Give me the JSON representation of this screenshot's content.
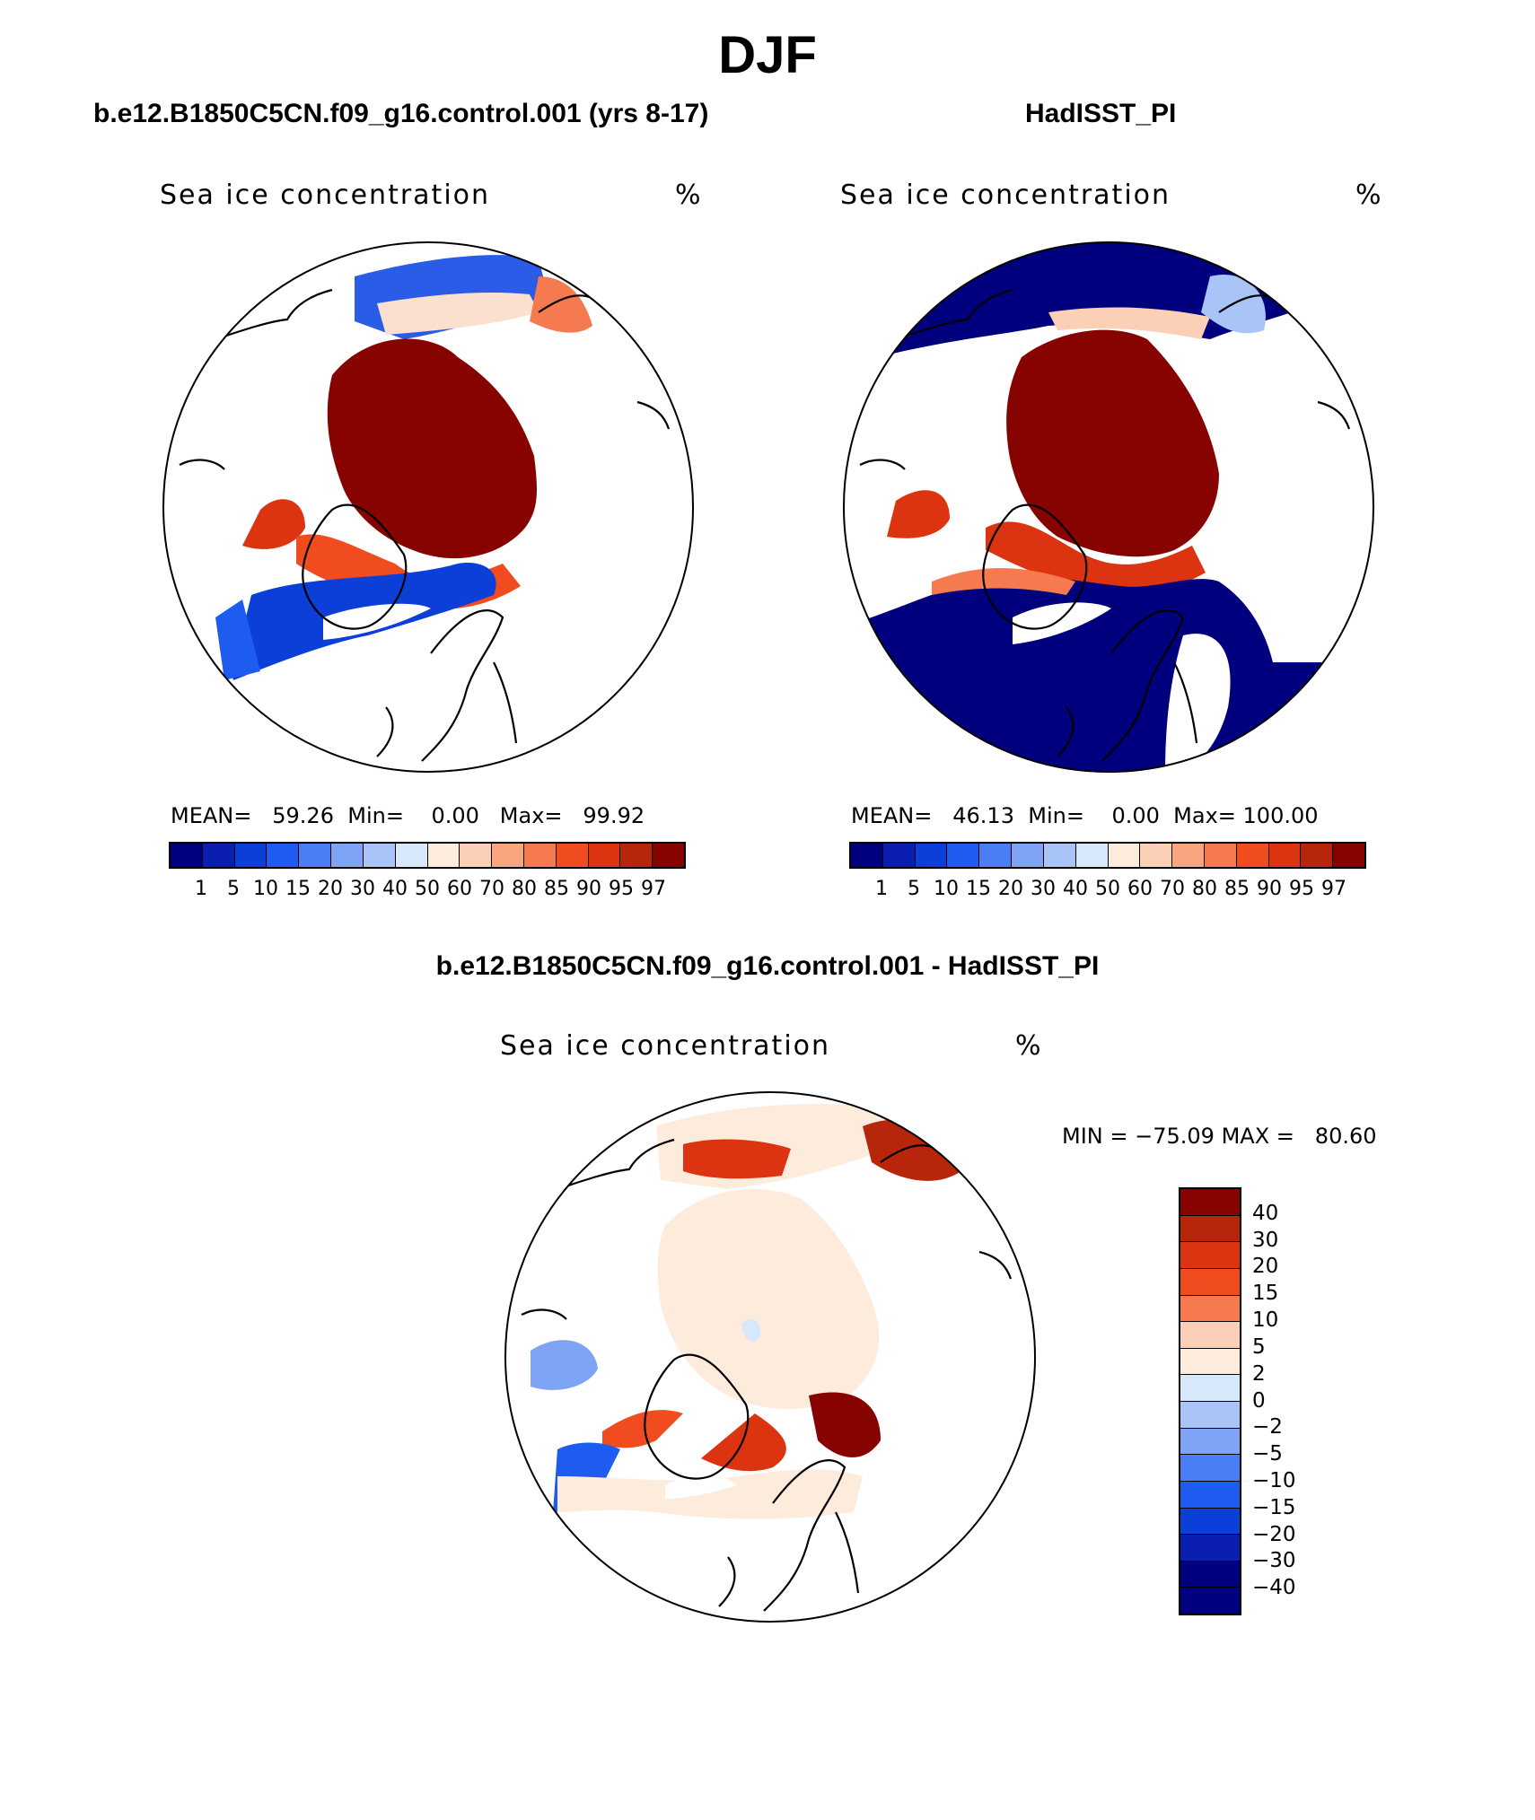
{
  "title": "DJF",
  "panels": {
    "model": {
      "title": "b.e12.B1850C5CN.f09_g16.control.001 (yrs 8-17)",
      "plot_label": "Sea ice concentration",
      "units": "%",
      "stats": {
        "mean_label": "MEAN=",
        "mean": "59.26",
        "min_label": "Min=",
        "min": "0.00",
        "max_label": "Max=",
        "max": "99.92"
      }
    },
    "obs": {
      "title": "HadISST_PI",
      "plot_label": "Sea ice concentration",
      "units": "%",
      "stats": {
        "mean_label": "MEAN=",
        "mean": "46.13",
        "min_label": "Min=",
        "min": "0.00",
        "max_label": "Max=",
        "max": "100.00"
      }
    },
    "diff": {
      "title": "b.e12.B1850C5CN.f09_g16.control.001 - HadISST_PI",
      "plot_label": "Sea ice concentration",
      "units": "%",
      "stats": {
        "min_label": "MIN =",
        "min": "−75.09",
        "max_label": "MAX =",
        "max": "80.60"
      }
    }
  },
  "colorbars": {
    "concentration": {
      "colors": [
        "#00007f",
        "#0a1fb0",
        "#0b3fd8",
        "#1e5cf0",
        "#4a7ef5",
        "#7fa3f5",
        "#a9c4f7",
        "#d8e8fb",
        "#fdebdc",
        "#fccfb7",
        "#f9a580",
        "#f57a4f",
        "#f04c20",
        "#dc3410",
        "#b7250b",
        "#870300"
      ],
      "ticks": [
        "1",
        "5",
        "10",
        "15",
        "20",
        "30",
        "40",
        "50",
        "60",
        "70",
        "80",
        "85",
        "90",
        "95",
        "97"
      ]
    },
    "difference": {
      "colors": [
        "#870300",
        "#b7250b",
        "#dc3410",
        "#f04c20",
        "#f57a4f",
        "#fccfb7",
        "#fdebdc",
        "#d8e8fb",
        "#a9c4f7",
        "#7fa3f5",
        "#4a7ef5",
        "#1e5cf0",
        "#0b3fd8",
        "#0a1fb0",
        "#00007f",
        "#000080"
      ],
      "ticks": [
        "40",
        "30",
        "20",
        "15",
        "10",
        "5",
        "2",
        "0",
        "−2",
        "−5",
        "−10",
        "−15",
        "−20",
        "−30",
        "−40"
      ]
    }
  }
}
